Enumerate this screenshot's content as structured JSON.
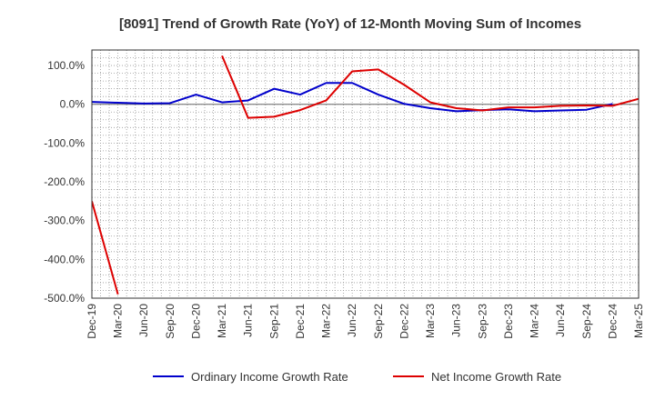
{
  "chart_data": {
    "type": "line",
    "title": "[8091]  Trend of Growth Rate (YoY) of 12-Month Moving Sum of Incomes",
    "xlabel": "",
    "ylabel": "",
    "x_ticks": [
      "Dec-19",
      "Mar-20",
      "Jun-20",
      "Sep-20",
      "Dec-20",
      "Mar-21",
      "Jun-21",
      "Sep-21",
      "Dec-21",
      "Mar-22",
      "Jun-22",
      "Sep-22",
      "Dec-22",
      "Mar-23",
      "Jun-23",
      "Sep-23",
      "Dec-23",
      "Mar-24",
      "Jun-24",
      "Sep-24",
      "Dec-24",
      "Mar-25"
    ],
    "y_ticks": [
      100,
      0,
      -100,
      -200,
      -300,
      -400,
      -500
    ],
    "y_tick_labels": [
      "100.0%",
      "0.0%",
      "-100.0%",
      "-200.0%",
      "-300.0%",
      "-400.0%",
      "-500.0%"
    ],
    "ylim": [
      -500,
      140
    ],
    "grid": true,
    "legend_position": "bottom",
    "series": [
      {
        "name": "Ordinary Income Growth Rate",
        "color": "#0000cc",
        "values": [
          6,
          4,
          2,
          3,
          25,
          5,
          10,
          40,
          25,
          55,
          55,
          25,
          1,
          -10,
          -18,
          -15,
          -13,
          -18,
          -16,
          -14,
          1,
          null
        ]
      },
      {
        "name": "Net Income Growth Rate",
        "color": "#dd0000",
        "values": [
          -250,
          -490,
          null,
          null,
          null,
          125,
          -35,
          -32,
          -15,
          10,
          85,
          90,
          50,
          5,
          -10,
          -16,
          -8,
          -8,
          -4,
          -3,
          -4,
          14
        ]
      }
    ]
  }
}
